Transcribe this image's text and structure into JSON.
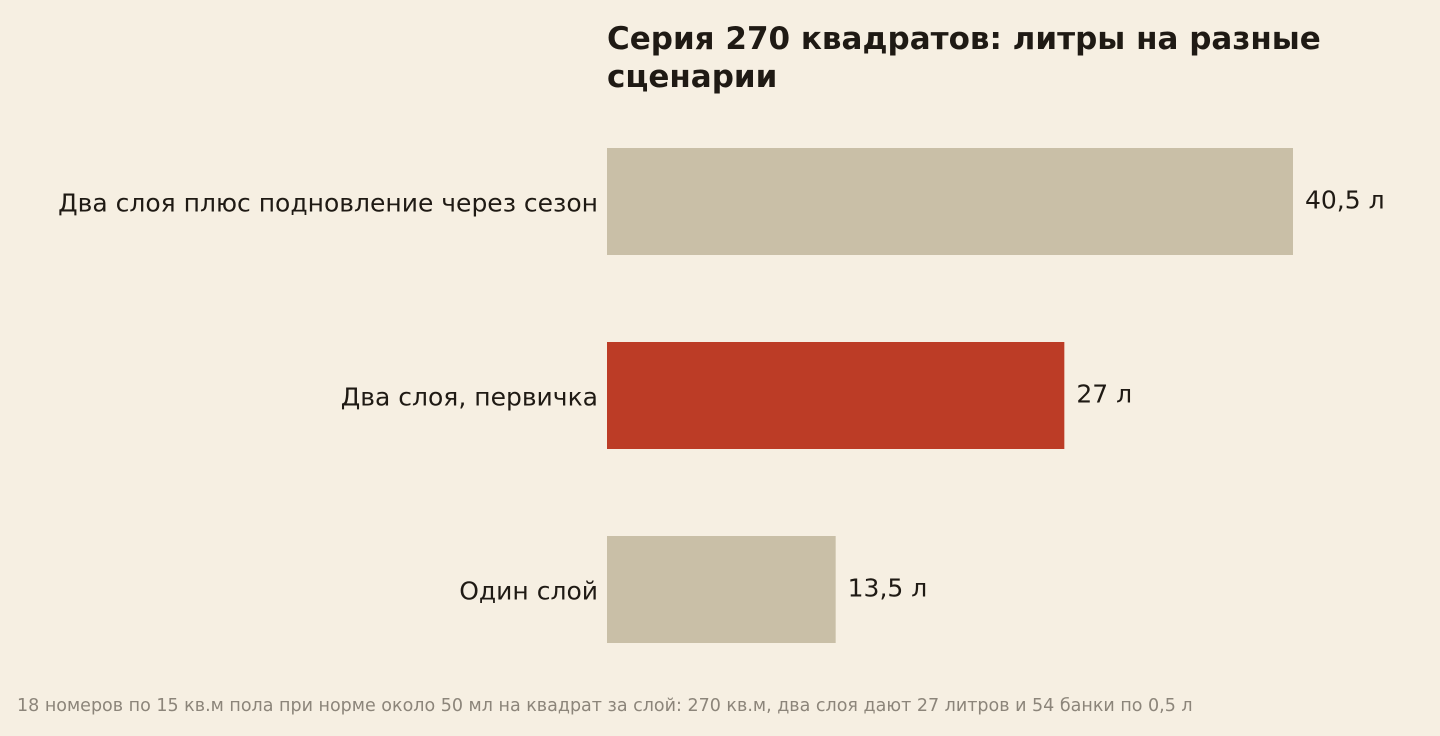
{
  "colors": {
    "background": "#f6efe2",
    "bar_default": "#c9bfa7",
    "bar_highlight": "#bc3c26",
    "text": "#1f1a14",
    "footnote": "#8c857a"
  },
  "chart_data": {
    "type": "bar",
    "orientation": "horizontal",
    "title": "Серия 270 квадратов: литры на разные сценарии",
    "categories": [
      "Два слоя плюс подновление через сезон",
      "Два слоя, первичка",
      "Один слой"
    ],
    "values": [
      40.5,
      27,
      13.5
    ],
    "value_labels": [
      "40,5 л",
      "27 л",
      "13,5 л"
    ],
    "highlight_index": 1,
    "xlim": [
      0,
      40.5
    ],
    "grid": false,
    "legend": "none"
  },
  "footnote": "18 номеров по 15 кв.м пола при норме около 50 мл на квадрат за слой: 270 кв.м, два слоя дают 27 литров и 54 банки по 0,5 л"
}
